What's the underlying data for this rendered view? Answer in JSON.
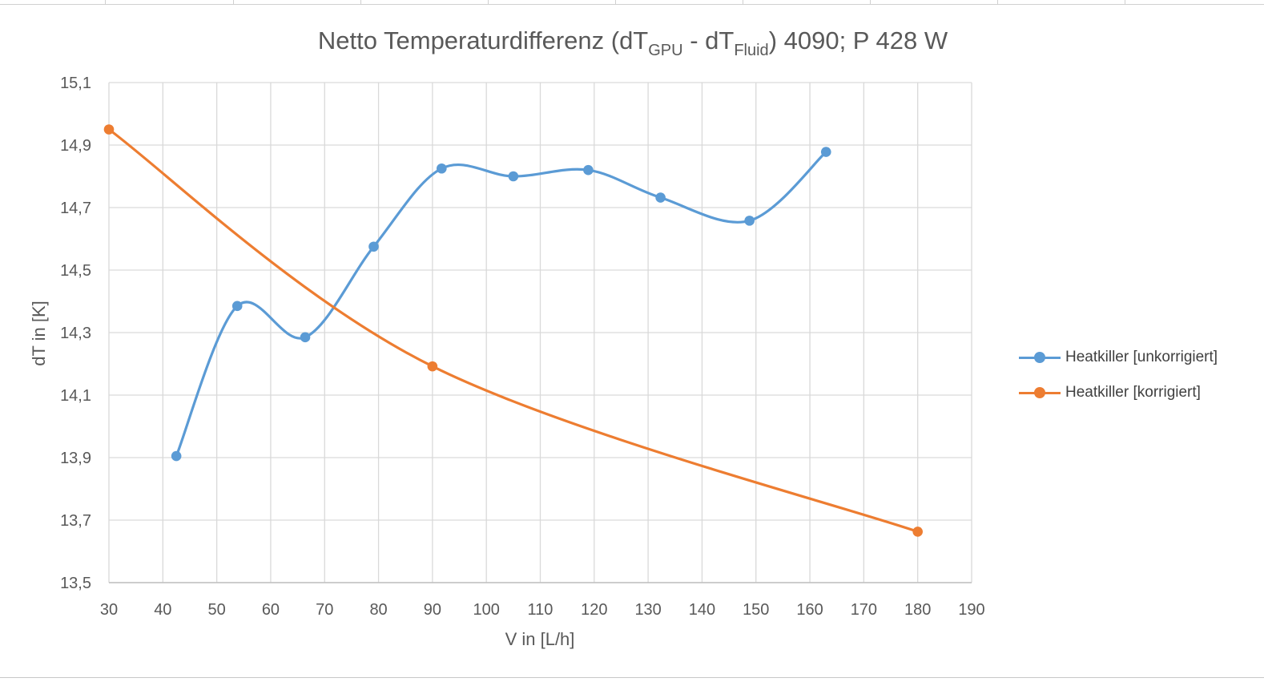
{
  "chart_data": {
    "type": "line",
    "title": "Netto Temperaturdifferenz (dT",
    "title_sub1": "GPU",
    "title_mid": " - dT",
    "title_sub2": "Fluid",
    "title_end": ") 4090; P 428 W",
    "xlabel": "V in [L/h]",
    "ylabel": "dT in [K]",
    "xlim": [
      30,
      190
    ],
    "ylim": [
      13.5,
      15.1
    ],
    "x_ticks": [
      30,
      40,
      50,
      60,
      70,
      80,
      90,
      100,
      110,
      120,
      130,
      140,
      150,
      160,
      170,
      180,
      190
    ],
    "y_ticks": [
      13.5,
      13.7,
      13.9,
      14.1,
      14.3,
      14.5,
      14.7,
      14.9,
      15.1
    ],
    "y_tick_labels": [
      "13,5",
      "13,7",
      "13,9",
      "14,1",
      "14,3",
      "14,5",
      "14,7",
      "14,9",
      "15,1"
    ],
    "grid": true,
    "smooth": true,
    "legend_position": "right",
    "series": [
      {
        "name": "Heatkiller [unkorrigiert]",
        "color": "#5b9bd5",
        "x": [
          42.5,
          53.8,
          66.4,
          79.1,
          91.7,
          105.0,
          118.9,
          132.3,
          148.8,
          163.0
        ],
        "y": [
          13.905,
          14.385,
          14.285,
          14.575,
          14.825,
          14.8,
          14.82,
          14.732,
          14.658,
          14.878
        ]
      },
      {
        "name": "Heatkiller [korrigiert]",
        "color": "#ed7d31",
        "x": [
          30,
          90,
          180
        ],
        "y": [
          14.95,
          14.192,
          13.663
        ]
      }
    ]
  }
}
